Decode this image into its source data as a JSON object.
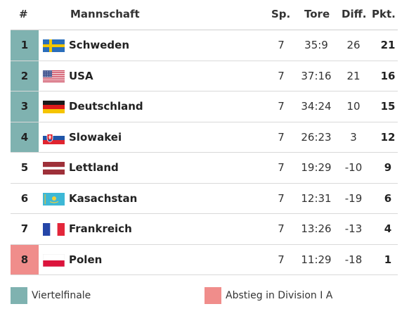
{
  "header": {
    "rank": "#",
    "team": "Mannschaft",
    "games": "Sp.",
    "goals": "Tore",
    "diff": "Diff.",
    "points": "Pkt."
  },
  "colors": {
    "qualify": "#7fb2b0",
    "relegation": "#f08d8b"
  },
  "rows": [
    {
      "rank": "1",
      "team": "Schweden",
      "flag": "sweden-flag-icon",
      "sp": "7",
      "tore": "35:9",
      "diff": "26",
      "pkt": "21",
      "status": "qualify"
    },
    {
      "rank": "2",
      "team": "USA",
      "flag": "usa-flag-icon",
      "sp": "7",
      "tore": "37:16",
      "diff": "21",
      "pkt": "16",
      "status": "qualify"
    },
    {
      "rank": "3",
      "team": "Deutschland",
      "flag": "germany-flag-icon",
      "sp": "7",
      "tore": "34:24",
      "diff": "10",
      "pkt": "15",
      "status": "qualify"
    },
    {
      "rank": "4",
      "team": "Slowakei",
      "flag": "slovakia-flag-icon",
      "sp": "7",
      "tore": "26:23",
      "diff": "3",
      "pkt": "12",
      "status": "qualify"
    },
    {
      "rank": "5",
      "team": "Lettland",
      "flag": "latvia-flag-icon",
      "sp": "7",
      "tore": "19:29",
      "diff": "-10",
      "pkt": "9",
      "status": "none"
    },
    {
      "rank": "6",
      "team": "Kasachstan",
      "flag": "kazakhstan-flag-icon",
      "sp": "7",
      "tore": "12:31",
      "diff": "-19",
      "pkt": "6",
      "status": "none"
    },
    {
      "rank": "7",
      "team": "Frankreich",
      "flag": "france-flag-icon",
      "sp": "7",
      "tore": "13:26",
      "diff": "-13",
      "pkt": "4",
      "status": "none"
    },
    {
      "rank": "8",
      "team": "Polen",
      "flag": "poland-flag-icon",
      "sp": "7",
      "tore": "11:29",
      "diff": "-18",
      "pkt": "1",
      "status": "relegation"
    }
  ],
  "legend": {
    "qualify_label": "Viertelfinale",
    "relegation_label": "Abstieg in Division I A"
  }
}
